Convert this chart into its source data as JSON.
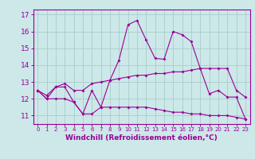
{
  "x": [
    0,
    1,
    2,
    3,
    4,
    5,
    6,
    7,
    8,
    9,
    10,
    11,
    12,
    13,
    14,
    15,
    16,
    17,
    18,
    19,
    20,
    21,
    22,
    23
  ],
  "line1": [
    12.5,
    12.0,
    12.7,
    12.7,
    11.8,
    11.1,
    12.5,
    11.5,
    13.1,
    14.3,
    16.4,
    16.65,
    15.5,
    14.4,
    14.35,
    16.0,
    15.8,
    15.4,
    13.8,
    12.3,
    12.5,
    12.1,
    12.1,
    10.8
  ],
  "line2": [
    12.5,
    12.2,
    12.7,
    12.9,
    12.5,
    12.5,
    12.9,
    13.0,
    13.1,
    13.2,
    13.3,
    13.4,
    13.4,
    13.5,
    13.5,
    13.6,
    13.6,
    13.7,
    13.8,
    13.8,
    13.8,
    13.8,
    12.5,
    12.1
  ],
  "line3": [
    12.5,
    12.0,
    12.0,
    12.0,
    11.8,
    11.1,
    11.1,
    11.5,
    11.5,
    11.5,
    11.5,
    11.5,
    11.5,
    11.4,
    11.3,
    11.2,
    11.2,
    11.1,
    11.1,
    11.0,
    11.0,
    11.0,
    10.9,
    10.8
  ],
  "line_color": "#990099",
  "bg_color": "#cce8e8",
  "grid_color": "#aacccc",
  "xlabel": "Windchill (Refroidissement éolien,°C)",
  "ylim": [
    10.5,
    17.3
  ],
  "xlim": [
    -0.5,
    23.5
  ],
  "yticks": [
    11,
    12,
    13,
    14,
    15,
    16,
    17
  ],
  "xticks": [
    0,
    1,
    2,
    3,
    4,
    5,
    6,
    7,
    8,
    9,
    10,
    11,
    12,
    13,
    14,
    15,
    16,
    17,
    18,
    19,
    20,
    21,
    22,
    23
  ],
  "xlabel_fontsize": 6.5,
  "ytick_fontsize": 6.5,
  "xtick_fontsize": 5.0
}
